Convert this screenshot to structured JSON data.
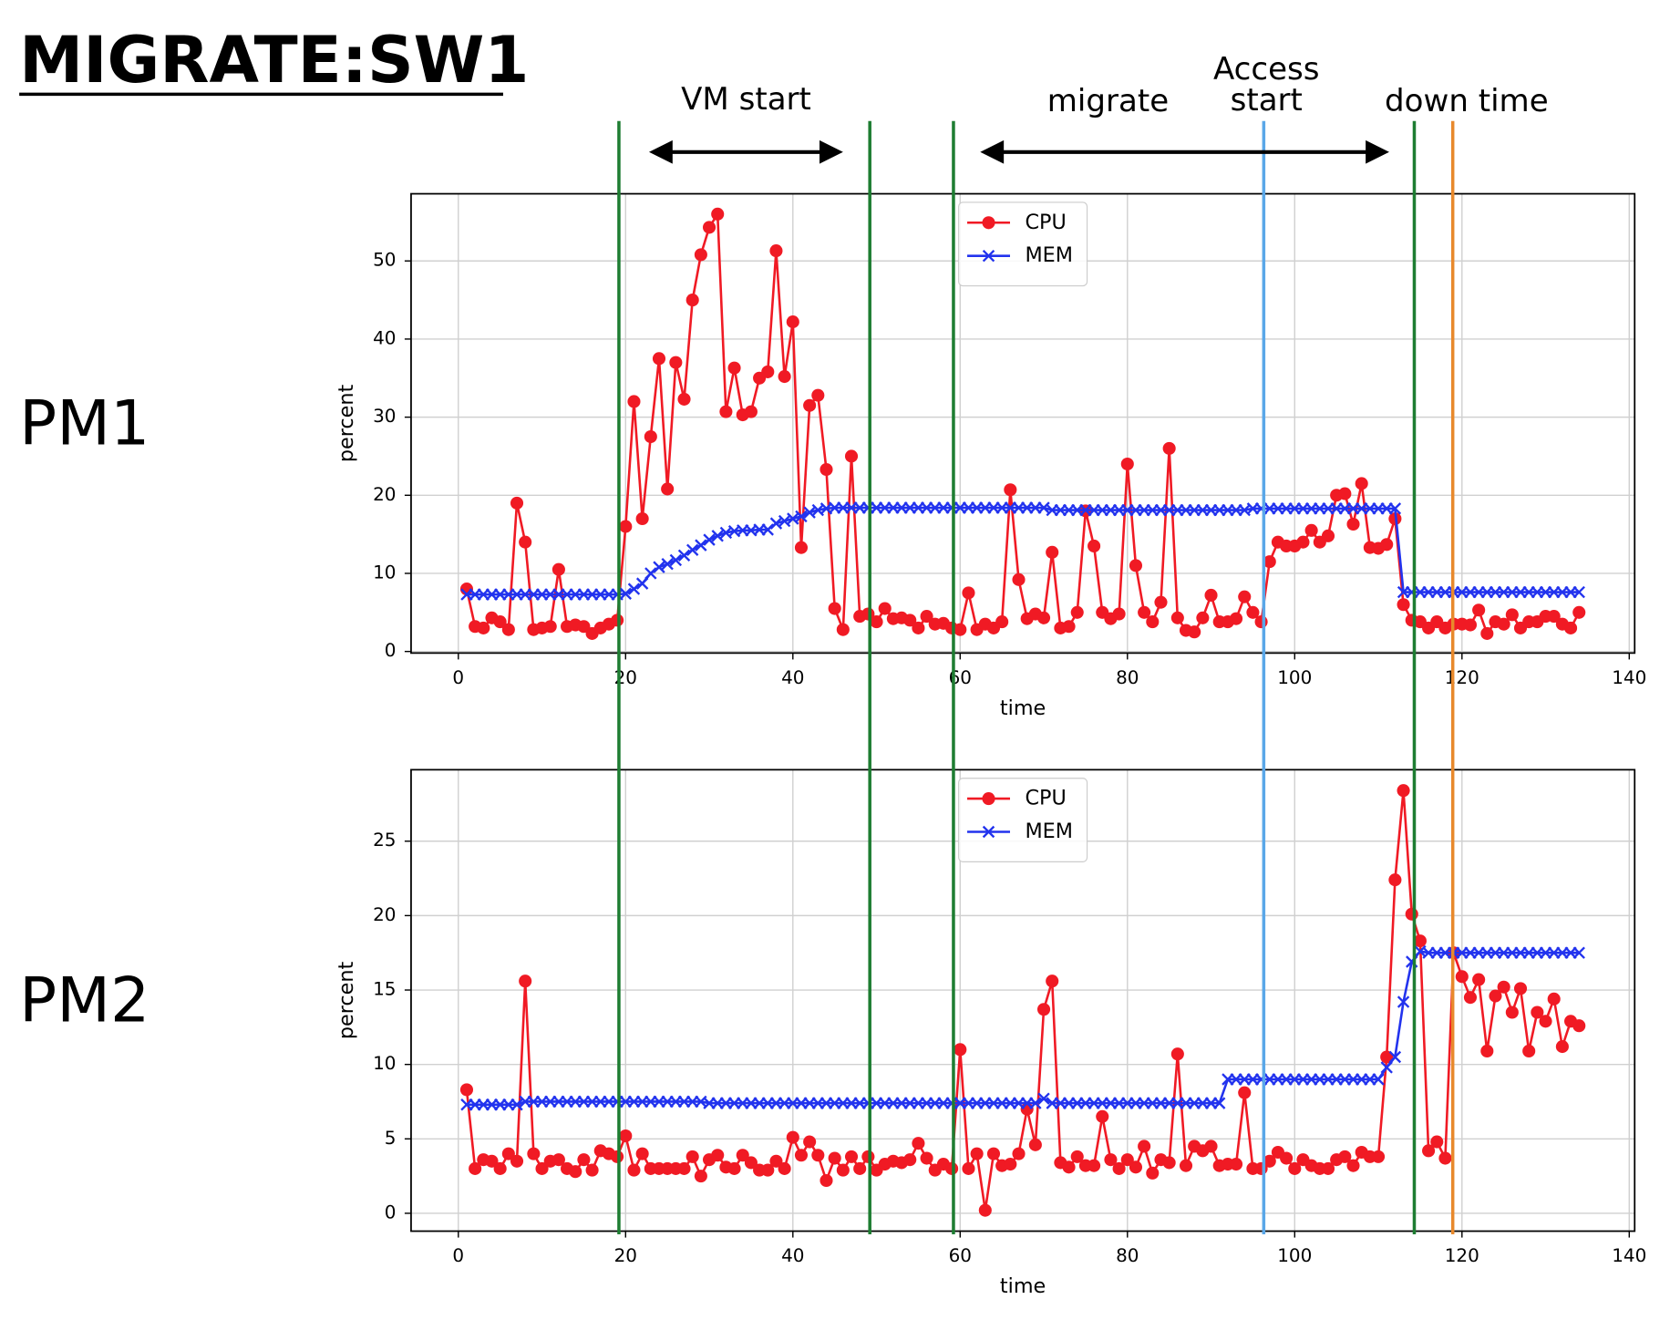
{
  "title": "MIGRATE:SW1",
  "annotations": [
    {
      "text": "VM start",
      "from": 22.8,
      "to": 46
    },
    {
      "text": "migrate",
      "from": 62.4,
      "to": 111.3
    },
    {
      "text": [
        "Access",
        "start"
      ]
    },
    {
      "text": "down time"
    }
  ],
  "markers": [
    {
      "x": 19.2,
      "color": "#1e7d32"
    },
    {
      "x": 49.2,
      "color": "#1e7d32"
    },
    {
      "x": 59.2,
      "color": "#1e7d32"
    },
    {
      "x": 96.3,
      "color": "#5aa7e8"
    },
    {
      "x": 114.3,
      "color": "#1e7d32"
    },
    {
      "x": 118.9,
      "color": "#e8892c"
    }
  ],
  "chart_data": [
    {
      "type": "line",
      "label": "PM1",
      "xlabel": "time",
      "ylabel": "percent",
      "x": [
        1,
        2,
        3,
        4,
        5,
        6,
        7,
        8,
        9,
        10,
        11,
        12,
        13,
        14,
        15,
        16,
        17,
        18,
        19,
        20,
        21,
        22,
        23,
        24,
        25,
        26,
        27,
        28,
        29,
        30,
        31,
        32,
        33,
        34,
        35,
        36,
        37,
        38,
        39,
        40,
        41,
        42,
        43,
        44,
        45,
        46,
        47,
        48,
        49,
        50,
        51,
        52,
        53,
        54,
        55,
        56,
        57,
        58,
        59,
        60,
        61,
        62,
        63,
        64,
        65,
        66,
        67,
        68,
        69,
        70,
        71,
        72,
        73,
        74,
        75,
        76,
        77,
        78,
        79,
        80,
        81,
        82,
        83,
        84,
        85,
        86,
        87,
        88,
        89,
        90,
        91,
        92,
        93,
        94,
        95,
        96,
        97,
        98,
        99,
        100,
        101,
        102,
        103,
        104,
        105,
        106,
        107,
        108,
        109,
        110,
        111,
        112,
        113,
        114,
        115,
        116,
        117,
        118,
        119,
        120,
        121,
        122,
        123,
        124,
        125,
        126,
        127,
        128,
        129,
        130,
        131,
        132,
        133,
        134
      ],
      "series": [
        {
          "name": "CPU",
          "color": "#f01a24",
          "marker": "o",
          "values": [
            8,
            3.2,
            3,
            4.3,
            3.8,
            2.8,
            19,
            14,
            2.8,
            3,
            3.2,
            10.5,
            3.2,
            3.4,
            3.2,
            2.3,
            3,
            3.5,
            4,
            16,
            32,
            17,
            27.5,
            37.5,
            20.8,
            37,
            32.3,
            45,
            50.8,
            54.3,
            56,
            30.7,
            36.3,
            30.3,
            30.7,
            35,
            35.8,
            51.3,
            35.2,
            42.2,
            13.3,
            31.5,
            32.8,
            23.3,
            5.5,
            2.8,
            25,
            4.5,
            4.8,
            3.8,
            5.5,
            4.2,
            4.3,
            4,
            3,
            4.5,
            3.5,
            3.6,
            3,
            2.8,
            7.5,
            2.8,
            3.5,
            3,
            3.8,
            20.7,
            9.2,
            4.2,
            4.8,
            4.3,
            12.7,
            3,
            3.2,
            5,
            18,
            13.5,
            5,
            4.2,
            4.8,
            24,
            11,
            5,
            3.8,
            6.3,
            26,
            4.3,
            2.7,
            2.5,
            4.3,
            7.2,
            3.8,
            3.8,
            4.2,
            7,
            5,
            3.8,
            11.5,
            14,
            13.5,
            13.5,
            14,
            15.5,
            14,
            14.8,
            20,
            20.2,
            16.3,
            21.5,
            13.3,
            13.2,
            13.7,
            17,
            6,
            4,
            3.8,
            3,
            3.8,
            3,
            3.5,
            3.5,
            3.4,
            5.3,
            2.3,
            3.8,
            3.5,
            4.7,
            3,
            3.8,
            3.8,
            4.5,
            4.5,
            3.5,
            3,
            5
          ]
        },
        {
          "name": "MEM",
          "color": "#2233ee",
          "marker": "x",
          "values": [
            7.3,
            7.3,
            7.3,
            7.3,
            7.3,
            7.3,
            7.3,
            7.3,
            7.3,
            7.3,
            7.3,
            7.3,
            7.3,
            7.3,
            7.3,
            7.3,
            7.3,
            7.3,
            7.3,
            7.4,
            8,
            8.7,
            10,
            10.8,
            11.2,
            11.7,
            12.3,
            13,
            13.6,
            14.3,
            14.8,
            15.2,
            15.4,
            15.5,
            15.5,
            15.6,
            15.6,
            16.4,
            16.7,
            17,
            17.3,
            17.8,
            18.1,
            18.3,
            18.4,
            18.4,
            18.4,
            18.4,
            18.4,
            18.4,
            18.4,
            18.4,
            18.4,
            18.4,
            18.4,
            18.4,
            18.4,
            18.4,
            18.4,
            18.4,
            18.4,
            18.4,
            18.4,
            18.4,
            18.4,
            18.4,
            18.4,
            18.4,
            18.4,
            18.4,
            18.1,
            18.1,
            18.1,
            18.1,
            18.1,
            18.1,
            18.1,
            18.1,
            18.1,
            18.1,
            18.1,
            18.1,
            18.1,
            18.1,
            18.1,
            18.1,
            18.1,
            18.1,
            18.1,
            18.1,
            18.1,
            18.1,
            18.1,
            18.1,
            18.3,
            18.3,
            18.3,
            18.3,
            18.3,
            18.3,
            18.3,
            18.3,
            18.3,
            18.3,
            18.3,
            18.3,
            18.3,
            18.3,
            18.3,
            18.3,
            18.3,
            18.3,
            7.6,
            7.6,
            7.6,
            7.6,
            7.6,
            7.6,
            7.6,
            7.6,
            7.6,
            7.6,
            7.6,
            7.6,
            7.6,
            7.6,
            7.6,
            7.6,
            7.6,
            7.6,
            7.6,
            7.6,
            7.6,
            7.6
          ]
        }
      ],
      "xlim": [
        -5.65,
        140.65
      ],
      "ylim": [
        -0.2,
        58.6
      ],
      "xticks": [
        0,
        20,
        40,
        60,
        80,
        100,
        120,
        140
      ],
      "yticks": [
        0,
        10,
        20,
        30,
        40,
        50
      ],
      "grid": true,
      "legend": "upper center"
    },
    {
      "type": "line",
      "label": "PM2",
      "xlabel": "time",
      "ylabel": "percent",
      "x": [
        1,
        2,
        3,
        4,
        5,
        6,
        7,
        8,
        9,
        10,
        11,
        12,
        13,
        14,
        15,
        16,
        17,
        18,
        19,
        20,
        21,
        22,
        23,
        24,
        25,
        26,
        27,
        28,
        29,
        30,
        31,
        32,
        33,
        34,
        35,
        36,
        37,
        38,
        39,
        40,
        41,
        42,
        43,
        44,
        45,
        46,
        47,
        48,
        49,
        50,
        51,
        52,
        53,
        54,
        55,
        56,
        57,
        58,
        59,
        60,
        61,
        62,
        63,
        64,
        65,
        66,
        67,
        68,
        69,
        70,
        71,
        72,
        73,
        74,
        75,
        76,
        77,
        78,
        79,
        80,
        81,
        82,
        83,
        84,
        85,
        86,
        87,
        88,
        89,
        90,
        91,
        92,
        93,
        94,
        95,
        96,
        97,
        98,
        99,
        100,
        101,
        102,
        103,
        104,
        105,
        106,
        107,
        108,
        109,
        110,
        111,
        112,
        113,
        114,
        115,
        116,
        117,
        118,
        119,
        120,
        121,
        122,
        123,
        124,
        125,
        126,
        127,
        128,
        129,
        130,
        131,
        132,
        133,
        134
      ],
      "series": [
        {
          "name": "CPU",
          "color": "#f01a24",
          "marker": "o",
          "values": [
            8.3,
            3,
            3.6,
            3.5,
            3,
            4,
            3.5,
            15.6,
            4,
            3,
            3.5,
            3.6,
            3,
            2.8,
            3.6,
            2.9,
            4.2,
            4,
            3.8,
            5.2,
            2.9,
            4,
            3,
            3,
            3,
            3,
            3,
            3.8,
            2.5,
            3.6,
            3.9,
            3.1,
            3,
            3.9,
            3.4,
            2.9,
            2.9,
            3.5,
            3,
            5.1,
            3.9,
            4.8,
            3.9,
            2.2,
            3.7,
            2.9,
            3.8,
            3,
            3.8,
            2.9,
            3.3,
            3.5,
            3.4,
            3.6,
            4.7,
            3.7,
            2.9,
            3.3,
            3,
            11,
            3,
            4,
            0.2,
            4,
            3.2,
            3.3,
            4,
            7,
            4.6,
            13.7,
            15.6,
            3.4,
            3.1,
            3.8,
            3.2,
            3.2,
            6.5,
            3.6,
            3,
            3.6,
            3.1,
            4.5,
            2.7,
            3.6,
            3.4,
            10.7,
            3.2,
            4.5,
            4.2,
            4.5,
            3.2,
            3.3,
            3.3,
            8.1,
            3,
            3,
            3.5,
            4.1,
            3.7,
            3,
            3.6,
            3.2,
            3,
            3,
            3.6,
            3.8,
            3.2,
            4.1,
            3.8,
            3.8,
            10.5,
            22.4,
            28.4,
            20.1,
            18.3,
            4.2,
            4.8,
            3.7,
            17.5,
            15.9,
            14.5,
            15.7,
            10.9,
            14.6,
            15.2,
            13.5,
            15.1,
            10.9,
            13.5,
            12.9,
            14.4,
            11.2,
            12.9,
            12.6
          ]
        },
        {
          "name": "MEM",
          "color": "#2233ee",
          "marker": "x",
          "values": [
            7.3,
            7.3,
            7.3,
            7.3,
            7.3,
            7.3,
            7.3,
            7.5,
            7.5,
            7.5,
            7.5,
            7.5,
            7.5,
            7.5,
            7.5,
            7.5,
            7.5,
            7.5,
            7.5,
            7.5,
            7.5,
            7.5,
            7.5,
            7.5,
            7.5,
            7.5,
            7.5,
            7.5,
            7.5,
            7.4,
            7.4,
            7.4,
            7.4,
            7.4,
            7.4,
            7.4,
            7.4,
            7.4,
            7.4,
            7.4,
            7.4,
            7.4,
            7.4,
            7.4,
            7.4,
            7.4,
            7.4,
            7.4,
            7.4,
            7.4,
            7.4,
            7.4,
            7.4,
            7.4,
            7.4,
            7.4,
            7.4,
            7.4,
            7.4,
            7.4,
            7.4,
            7.4,
            7.4,
            7.4,
            7.4,
            7.4,
            7.4,
            7.4,
            7.4,
            7.7,
            7.4,
            7.4,
            7.4,
            7.4,
            7.4,
            7.4,
            7.4,
            7.4,
            7.4,
            7.4,
            7.4,
            7.4,
            7.4,
            7.4,
            7.4,
            7.4,
            7.4,
            7.4,
            7.4,
            7.4,
            7.4,
            9,
            9,
            9,
            9,
            9,
            9,
            9,
            9,
            9,
            9,
            9,
            9,
            9,
            9,
            9,
            9,
            9,
            9,
            9,
            9.8,
            10.5,
            14.2,
            16.9,
            17.6,
            17.5,
            17.5,
            17.5,
            17.5,
            17.5,
            17.5,
            17.5,
            17.5,
            17.5,
            17.5,
            17.5,
            17.5,
            17.5,
            17.5,
            17.5,
            17.5,
            17.5,
            17.5,
            17.5
          ]
        }
      ],
      "xlim": [
        -5.65,
        140.65
      ],
      "ylim": [
        -1.2,
        29.8
      ],
      "xticks": [
        0,
        20,
        40,
        60,
        80,
        100,
        120,
        140
      ],
      "yticks": [
        0,
        5,
        10,
        15,
        20,
        25
      ],
      "grid": true,
      "legend": "upper center"
    }
  ]
}
